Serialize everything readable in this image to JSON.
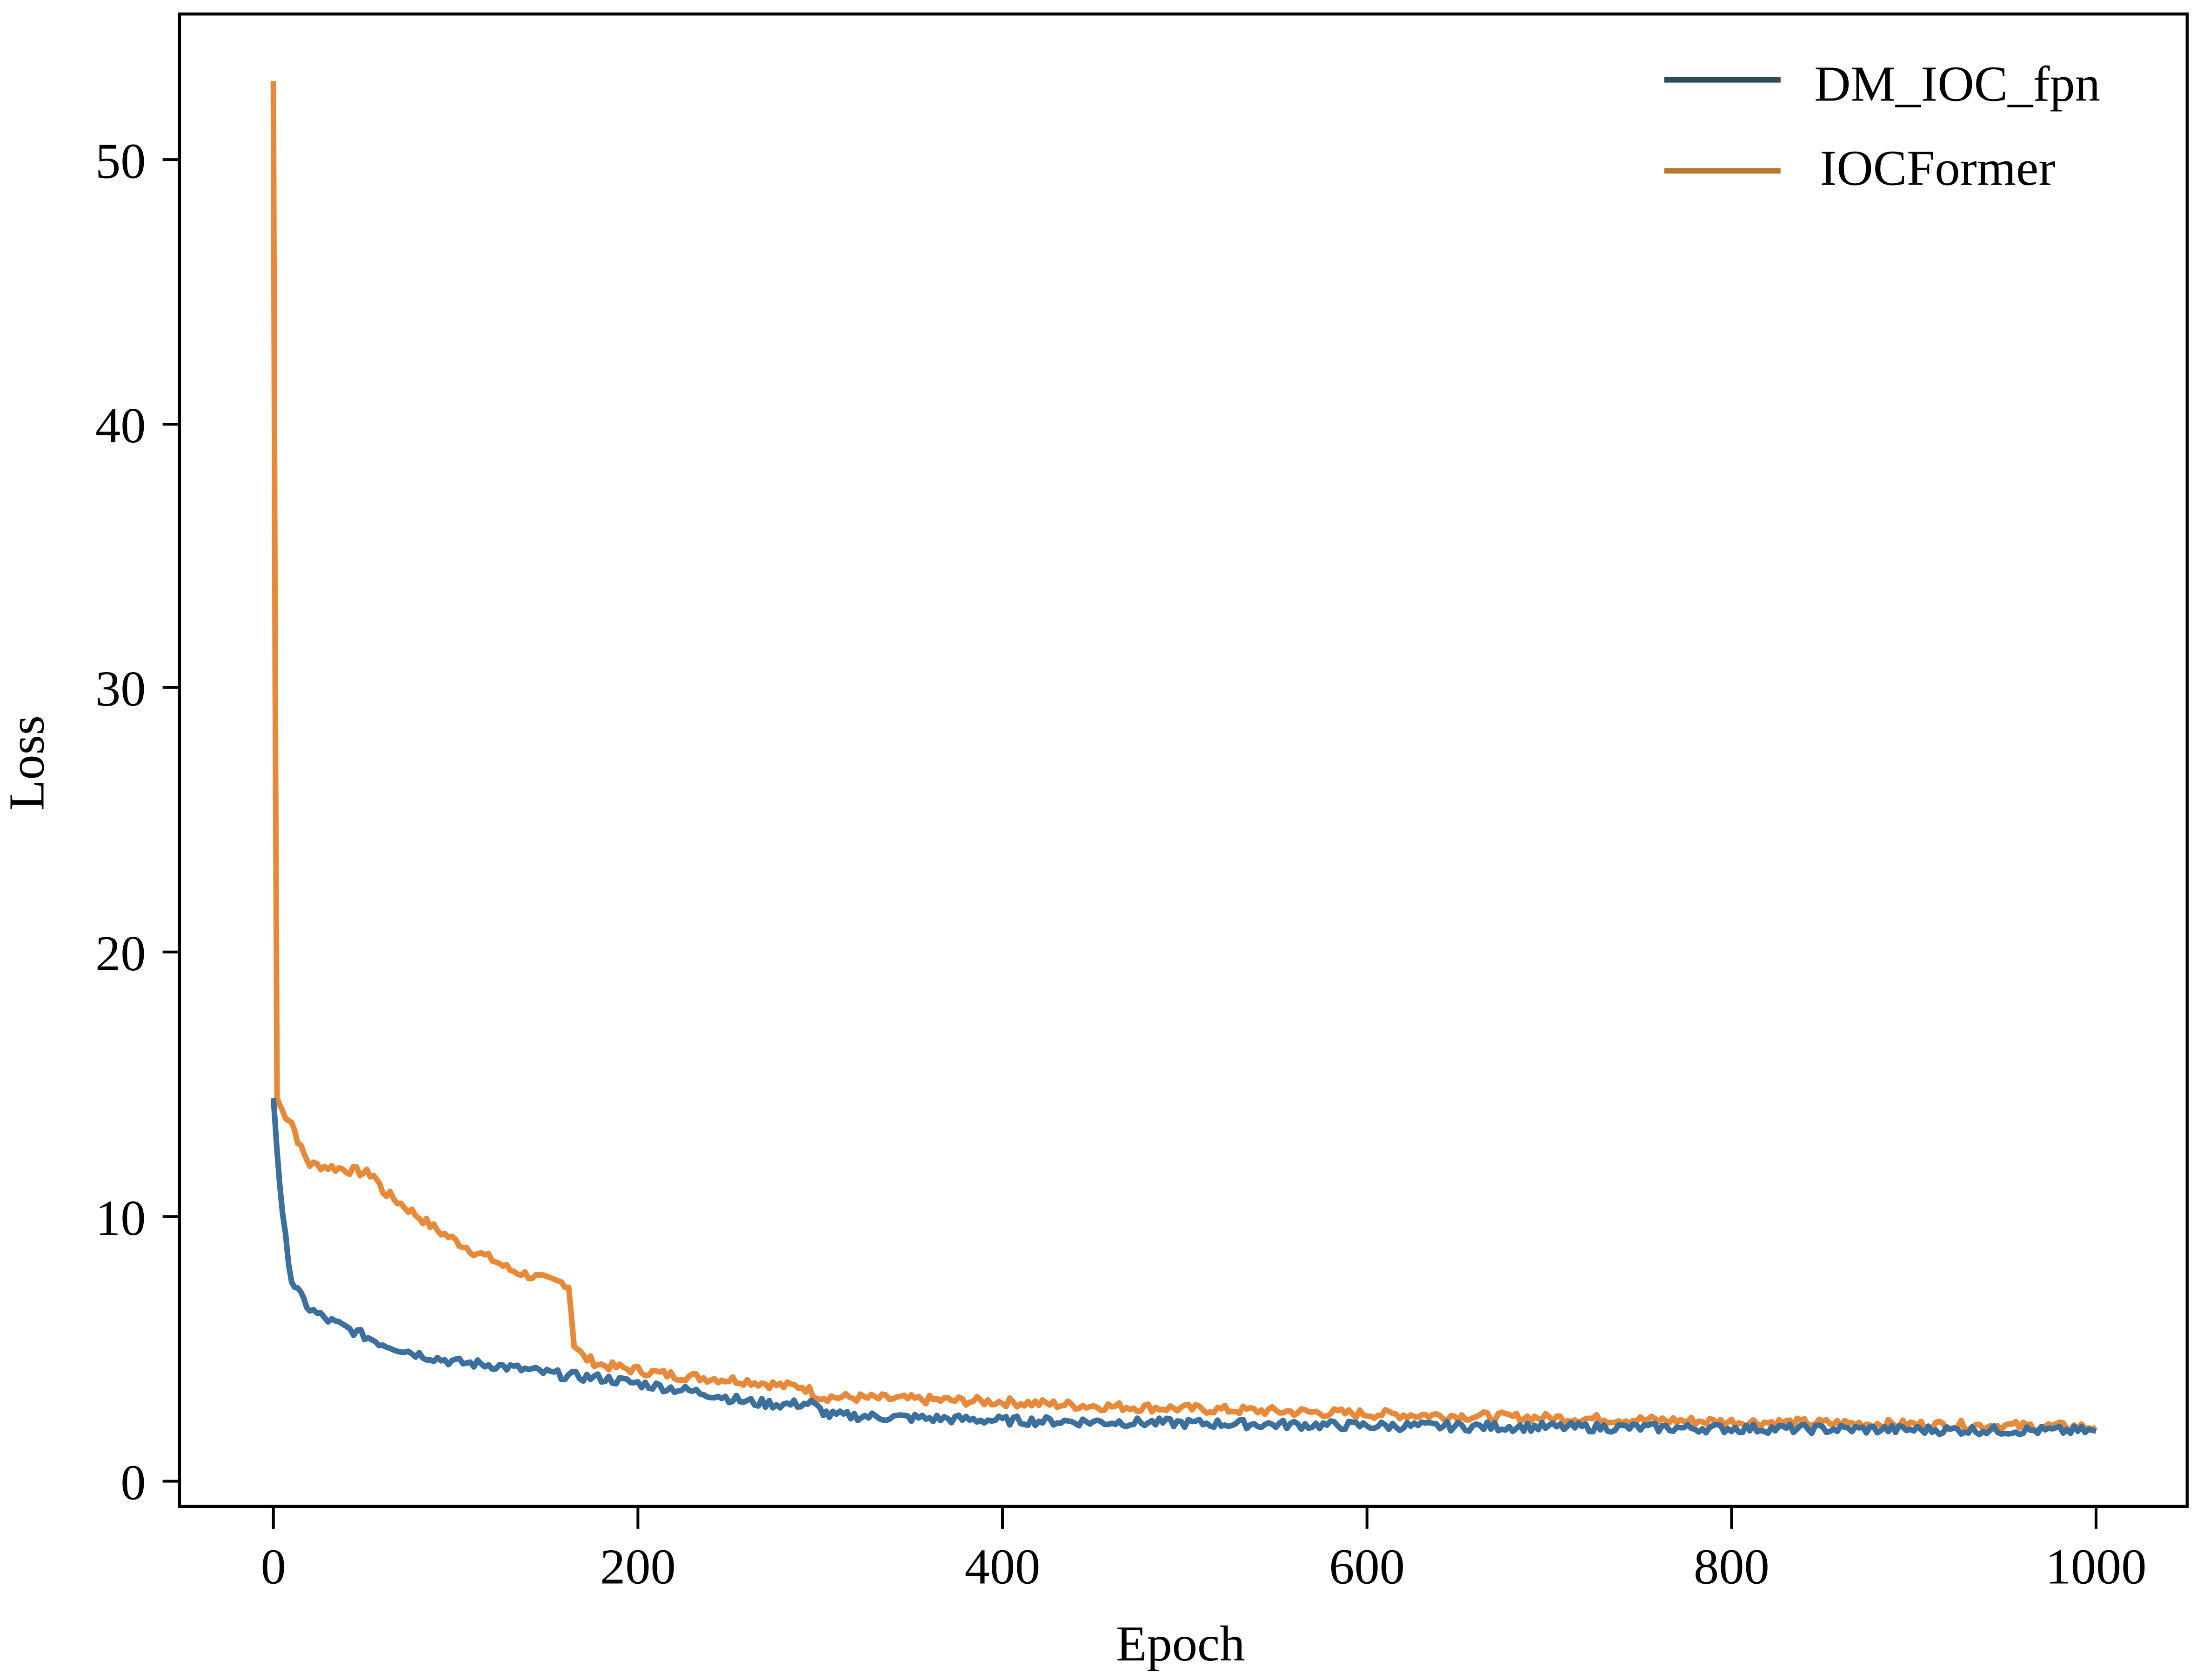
{
  "chart_data": {
    "type": "line",
    "title": "",
    "xlabel": "Epoch",
    "ylabel": "Loss",
    "xlim": [
      -50,
      1050
    ],
    "ylim": [
      -1,
      55
    ],
    "xticks": [
      0,
      200,
      400,
      600,
      800,
      1000
    ],
    "yticks": [
      0,
      10,
      20,
      30,
      40,
      50
    ],
    "grid": false,
    "legend_position": "upper right",
    "series": [
      {
        "name": "DM_IOC_fpn",
        "color": "#3a6f9e",
        "legend_color": "#2a4f52",
        "x": [
          0,
          2,
          5,
          10,
          15,
          20,
          30,
          40,
          60,
          80,
          100,
          120,
          140,
          160,
          180,
          200,
          220,
          240,
          260,
          280,
          295,
          300,
          305,
          350,
          400,
          450,
          500,
          600,
          700,
          800,
          900,
          1000
        ],
        "y": [
          14.5,
          12.5,
          10.0,
          7.6,
          7.0,
          6.5,
          6.1,
          5.8,
          5.2,
          4.8,
          4.5,
          4.4,
          4.2,
          4.0,
          3.9,
          3.7,
          3.5,
          3.3,
          3.0,
          2.9,
          2.95,
          2.7,
          2.5,
          2.4,
          2.3,
          2.25,
          2.2,
          2.1,
          2.05,
          2.0,
          1.95,
          1.9
        ]
      },
      {
        "name": "IOCFormer",
        "color": "#e8893a",
        "legend_color": "#b8782e",
        "x": [
          0,
          1,
          2,
          5,
          10,
          15,
          20,
          30,
          40,
          55,
          60,
          70,
          80,
          90,
          100,
          110,
          120,
          130,
          140,
          150,
          160,
          162,
          165,
          170,
          180,
          200,
          220,
          240,
          260,
          280,
          290,
          300,
          350,
          400,
          450,
          500,
          600,
          700,
          800,
          900,
          1000
        ],
        "y": [
          53.0,
          30.0,
          14.5,
          14.0,
          13.6,
          12.6,
          12.0,
          11.9,
          11.8,
          11.6,
          11.0,
          10.5,
          10.0,
          9.5,
          9.1,
          8.7,
          8.4,
          8.0,
          7.8,
          7.6,
          7.5,
          7.4,
          5.2,
          4.7,
          4.4,
          4.2,
          4.0,
          3.9,
          3.8,
          3.6,
          3.6,
          3.2,
          3.1,
          3.0,
          2.85,
          2.75,
          2.55,
          2.4,
          2.25,
          2.15,
          2.05
        ]
      }
    ]
  },
  "axes": {
    "xlabel": "Epoch",
    "ylabel": "Loss",
    "xtick_labels": [
      "0",
      "200",
      "400",
      "600",
      "800",
      "1000"
    ],
    "ytick_labels": [
      "0",
      "10",
      "20",
      "30",
      "40",
      "50"
    ]
  },
  "legend": {
    "items": [
      {
        "label": "DM_IOC_fpn",
        "color": "#2a4f52"
      },
      {
        "label": "IOCFormer",
        "color": "#b8782e"
      }
    ]
  }
}
